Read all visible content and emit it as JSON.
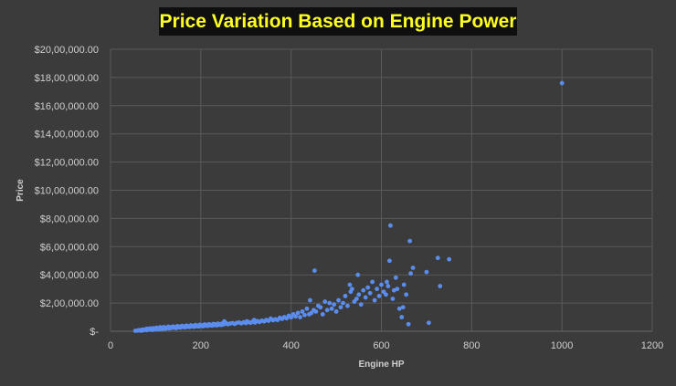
{
  "chart_data": {
    "type": "scatter",
    "title": "Price Variation Based on Engine Power",
    "xlabel": "Engine HP",
    "ylabel": "Price",
    "xlim": [
      0,
      1200
    ],
    "ylim": [
      0,
      2000000
    ],
    "x_ticks": [
      0,
      200,
      400,
      600,
      800,
      1000,
      1200
    ],
    "x_tick_labels": [
      "0",
      "200",
      "400",
      "600",
      "800",
      "1000",
      "1200"
    ],
    "y_ticks": [
      0,
      200000,
      400000,
      600000,
      800000,
      1000000,
      1200000,
      1400000,
      1600000,
      1800000,
      2000000
    ],
    "y_tick_labels": [
      "$-",
      "$2,00,000.00",
      "$4,00,000.00",
      "$6,00,000.00",
      "$8,00,000.00",
      "$10,00,000.00",
      "$12,00,000.00",
      "$14,00,000.00",
      "$16,00,000.00",
      "$18,00,000.00",
      "$20,00,000.00"
    ],
    "grid": true,
    "marker_color": "#5b8def",
    "points": [
      [
        55,
        3000
      ],
      [
        60,
        5000
      ],
      [
        63,
        8000
      ],
      [
        67,
        4000
      ],
      [
        70,
        12000
      ],
      [
        72,
        6000
      ],
      [
        75,
        10000
      ],
      [
        78,
        15000
      ],
      [
        80,
        8000
      ],
      [
        82,
        18000
      ],
      [
        85,
        11000
      ],
      [
        88,
        20000
      ],
      [
        90,
        14000
      ],
      [
        92,
        9000
      ],
      [
        95,
        22000
      ],
      [
        98,
        16000
      ],
      [
        100,
        12000
      ],
      [
        102,
        25000
      ],
      [
        105,
        18000
      ],
      [
        108,
        14000
      ],
      [
        110,
        28000
      ],
      [
        112,
        20000
      ],
      [
        115,
        16000
      ],
      [
        118,
        30000
      ],
      [
        120,
        22000
      ],
      [
        122,
        18000
      ],
      [
        125,
        26000
      ],
      [
        128,
        32000
      ],
      [
        130,
        20000
      ],
      [
        132,
        28000
      ],
      [
        135,
        24000
      ],
      [
        138,
        34000
      ],
      [
        140,
        26000
      ],
      [
        142,
        30000
      ],
      [
        145,
        22000
      ],
      [
        148,
        36000
      ],
      [
        150,
        28000
      ],
      [
        152,
        32000
      ],
      [
        155,
        26000
      ],
      [
        158,
        38000
      ],
      [
        160,
        30000
      ],
      [
        162,
        34000
      ],
      [
        165,
        28000
      ],
      [
        168,
        40000
      ],
      [
        170,
        32000
      ],
      [
        172,
        36000
      ],
      [
        175,
        30000
      ],
      [
        178,
        42000
      ],
      [
        180,
        34000
      ],
      [
        182,
        38000
      ],
      [
        185,
        32000
      ],
      [
        188,
        44000
      ],
      [
        190,
        36000
      ],
      [
        192,
        40000
      ],
      [
        195,
        34000
      ],
      [
        198,
        46000
      ],
      [
        200,
        38000
      ],
      [
        202,
        42000
      ],
      [
        205,
        36000
      ],
      [
        208,
        48000
      ],
      [
        210,
        40000
      ],
      [
        212,
        44000
      ],
      [
        215,
        38000
      ],
      [
        218,
        50000
      ],
      [
        220,
        42000
      ],
      [
        222,
        46000
      ],
      [
        225,
        40000
      ],
      [
        228,
        52000
      ],
      [
        230,
        44000
      ],
      [
        232,
        48000
      ],
      [
        235,
        42000
      ],
      [
        238,
        54000
      ],
      [
        240,
        46000
      ],
      [
        242,
        50000
      ],
      [
        245,
        44000
      ],
      [
        248,
        56000
      ],
      [
        250,
        48000
      ],
      [
        252,
        70000
      ],
      [
        255,
        60000
      ],
      [
        258,
        52000
      ],
      [
        260,
        50000
      ],
      [
        265,
        55000
      ],
      [
        270,
        58000
      ],
      [
        275,
        52000
      ],
      [
        280,
        60000
      ],
      [
        285,
        62000
      ],
      [
        290,
        56000
      ],
      [
        295,
        64000
      ],
      [
        300,
        58000
      ],
      [
        302,
        70000
      ],
      [
        305,
        66000
      ],
      [
        310,
        60000
      ],
      [
        315,
        68000
      ],
      [
        318,
        80000
      ],
      [
        320,
        62000
      ],
      [
        325,
        72000
      ],
      [
        330,
        66000
      ],
      [
        335,
        75000
      ],
      [
        340,
        70000
      ],
      [
        345,
        80000
      ],
      [
        350,
        74000
      ],
      [
        355,
        90000
      ],
      [
        360,
        78000
      ],
      [
        365,
        85000
      ],
      [
        370,
        80000
      ],
      [
        375,
        95000
      ],
      [
        380,
        88000
      ],
      [
        385,
        100000
      ],
      [
        390,
        92000
      ],
      [
        395,
        110000
      ],
      [
        400,
        98000
      ],
      [
        405,
        120000
      ],
      [
        410,
        105000
      ],
      [
        415,
        130000
      ],
      [
        420,
        100000
      ],
      [
        425,
        140000
      ],
      [
        430,
        115000
      ],
      [
        435,
        160000
      ],
      [
        440,
        120000
      ],
      [
        442,
        220000
      ],
      [
        445,
        130000
      ],
      [
        450,
        150000
      ],
      [
        452,
        430000
      ],
      [
        455,
        140000
      ],
      [
        460,
        180000
      ],
      [
        465,
        170000
      ],
      [
        470,
        120000
      ],
      [
        475,
        210000
      ],
      [
        480,
        150000
      ],
      [
        485,
        200000
      ],
      [
        490,
        160000
      ],
      [
        495,
        190000
      ],
      [
        500,
        140000
      ],
      [
        505,
        220000
      ],
      [
        510,
        170000
      ],
      [
        515,
        200000
      ],
      [
        520,
        250000
      ],
      [
        525,
        180000
      ],
      [
        530,
        330000
      ],
      [
        532,
        280000
      ],
      [
        535,
        300000
      ],
      [
        540,
        210000
      ],
      [
        545,
        230000
      ],
      [
        548,
        400000
      ],
      [
        550,
        260000
      ],
      [
        555,
        190000
      ],
      [
        560,
        290000
      ],
      [
        565,
        240000
      ],
      [
        570,
        310000
      ],
      [
        575,
        270000
      ],
      [
        580,
        350000
      ],
      [
        585,
        220000
      ],
      [
        590,
        300000
      ],
      [
        595,
        250000
      ],
      [
        600,
        330000
      ],
      [
        605,
        280000
      ],
      [
        610,
        260000
      ],
      [
        612,
        350000
      ],
      [
        615,
        320000
      ],
      [
        618,
        500000
      ],
      [
        620,
        750000
      ],
      [
        625,
        230000
      ],
      [
        628,
        290000
      ],
      [
        632,
        380000
      ],
      [
        635,
        300000
      ],
      [
        640,
        160000
      ],
      [
        645,
        100000
      ],
      [
        648,
        170000
      ],
      [
        650,
        330000
      ],
      [
        655,
        260000
      ],
      [
        660,
        50000
      ],
      [
        663,
        640000
      ],
      [
        665,
        410000
      ],
      [
        670,
        450000
      ],
      [
        700,
        420000
      ],
      [
        705,
        60000
      ],
      [
        725,
        520000
      ],
      [
        730,
        320000
      ],
      [
        750,
        510000
      ],
      [
        1000,
        1760000
      ]
    ]
  }
}
